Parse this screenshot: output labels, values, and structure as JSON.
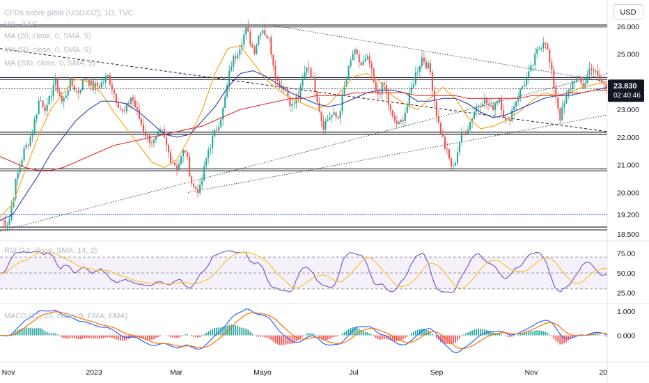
{
  "header": {
    "title": "CFDs sobre plata (USD/OZ), 1D, TVC",
    "vol_label": "Vol · XAG",
    "ma20_label": "MA (20, close, 0, SMA, 5)",
    "ma50_label": "MA (50, close, 0, SMA, 5)",
    "ma200_label": "MA (200, close, 0, SMA, 5)",
    "currency": "USD"
  },
  "rsi": {
    "label": "RSI (14, close, SMA, 14, 2)",
    "ticks": [
      "75.00",
      "50.00",
      "25.00"
    ]
  },
  "macd": {
    "label": "MACD (12, 26, close, 9, EMA, EMA)",
    "ticks": [
      "1.000",
      "0.000"
    ]
  },
  "colors": {
    "up": "#26a69a",
    "down": "#ef5350",
    "ma20": "#f5a623",
    "ma50": "#3949ab",
    "ma200": "#e53935",
    "rsi": "#7e57c2",
    "rsi_signal": "#fbc02d",
    "macd_line": "#2962ff",
    "macd_signal": "#ff6d00",
    "support": "#1e53e5"
  },
  "price_axis": {
    "ticks": [
      "26.000",
      "25.000",
      "24.000",
      "23.000",
      "22.000",
      "21.000",
      "20.000",
      "19.200",
      "18.500"
    ],
    "last_price": "23.830",
    "countdown": "02:40:46"
  },
  "time_axis": [
    "Nov",
    "2023",
    "Mar",
    "Mayo",
    "Jul",
    "Sep",
    "Nov",
    "20"
  ],
  "chart_data": {
    "type": "candlestick",
    "title": "CFDs sobre plata (USD/OZ), 1D, TVC",
    "ylim": [
      18.4,
      26.2
    ],
    "x_range": [
      "2022-10-24",
      "2023-12-20"
    ],
    "series": [
      {
        "name": "MA (20, close, 0, SMA, 5)",
        "values": [
          19.1,
          19.6,
          20.8,
          22.0,
          23.0,
          23.6,
          24.1,
          24.0,
          23.6,
          22.9,
          22.3,
          21.7,
          21.1,
          20.9,
          21.2,
          22.0,
          23.0,
          24.3,
          25.2,
          25.3,
          24.7,
          24.1,
          23.7,
          23.4,
          23.2,
          23.0,
          23.2,
          23.7,
          24.2,
          24.3,
          24.0,
          23.5,
          23.2,
          23.0,
          23.4,
          23.8,
          23.4,
          22.7,
          22.3,
          22.4,
          22.6,
          22.9,
          23.3,
          23.6,
          23.5,
          23.6,
          23.8,
          23.9,
          24.0
        ]
      },
      {
        "name": "MA (50, close, 0, SMA, 5)",
        "values": [
          19.0,
          19.2,
          19.9,
          20.6,
          21.4,
          22.0,
          22.6,
          23.0,
          23.3,
          23.3,
          23.2,
          22.9,
          22.5,
          22.1,
          22.0,
          22.1,
          22.6,
          23.1,
          23.8,
          24.3,
          24.4,
          24.2,
          23.9,
          23.6,
          23.4,
          23.2,
          23.1,
          23.2,
          23.4,
          23.6,
          23.7,
          23.7,
          23.6,
          23.3,
          23.3,
          23.4,
          23.4,
          23.2,
          22.9,
          22.7,
          22.8,
          23.0,
          23.2,
          23.4,
          23.5,
          23.5,
          23.6,
          23.7,
          23.8
        ]
      },
      {
        "name": "MA (200, close, 0, SMA, 5)",
        "values": [
          21.3,
          21.1,
          20.9,
          20.8,
          20.8,
          20.9,
          21.1,
          21.3,
          21.5,
          21.7,
          21.8,
          21.9,
          22.0,
          22.1,
          22.2,
          22.3,
          22.4,
          22.6,
          22.8,
          23.0,
          23.1,
          23.2,
          23.3,
          23.4,
          23.4,
          23.5,
          23.5,
          23.5,
          23.6,
          23.6,
          23.6,
          23.6,
          23.6,
          23.5,
          23.5,
          23.5,
          23.5,
          23.4,
          23.4,
          23.4,
          23.4,
          23.4,
          23.5,
          23.5,
          23.5,
          23.6,
          23.6,
          23.7,
          23.7
        ]
      }
    ],
    "price_path": [
      19.0,
      18.9,
      20.5,
      21.5,
      22.1,
      23.4,
      23.0,
      24.1,
      23.2,
      24.0,
      23.6,
      24.2,
      23.8,
      23.9,
      24.2,
      23.4,
      22.8,
      23.5,
      22.7,
      22.0,
      21.8,
      22.2,
      21.3,
      20.9,
      21.6,
      20.2,
      20.1,
      21.5,
      22.2,
      23.0,
      24.6,
      25.2,
      25.9,
      25.1,
      26.0,
      25.5,
      24.0,
      23.8,
      23.1,
      23.6,
      24.7,
      23.8,
      22.4,
      22.8,
      22.7,
      24.0,
      25.1,
      24.6,
      24.8,
      23.5,
      23.9,
      22.7,
      22.4,
      23.1,
      24.2,
      24.9,
      24.4,
      22.6,
      21.6,
      20.8,
      22.0,
      22.4,
      23.1,
      23.4,
      23.0,
      23.5,
      22.4,
      23.2,
      23.8,
      24.3,
      25.1,
      25.6,
      24.1,
      22.7,
      23.6,
      24.2,
      23.8,
      24.6,
      24.1,
      23.8
    ]
  }
}
